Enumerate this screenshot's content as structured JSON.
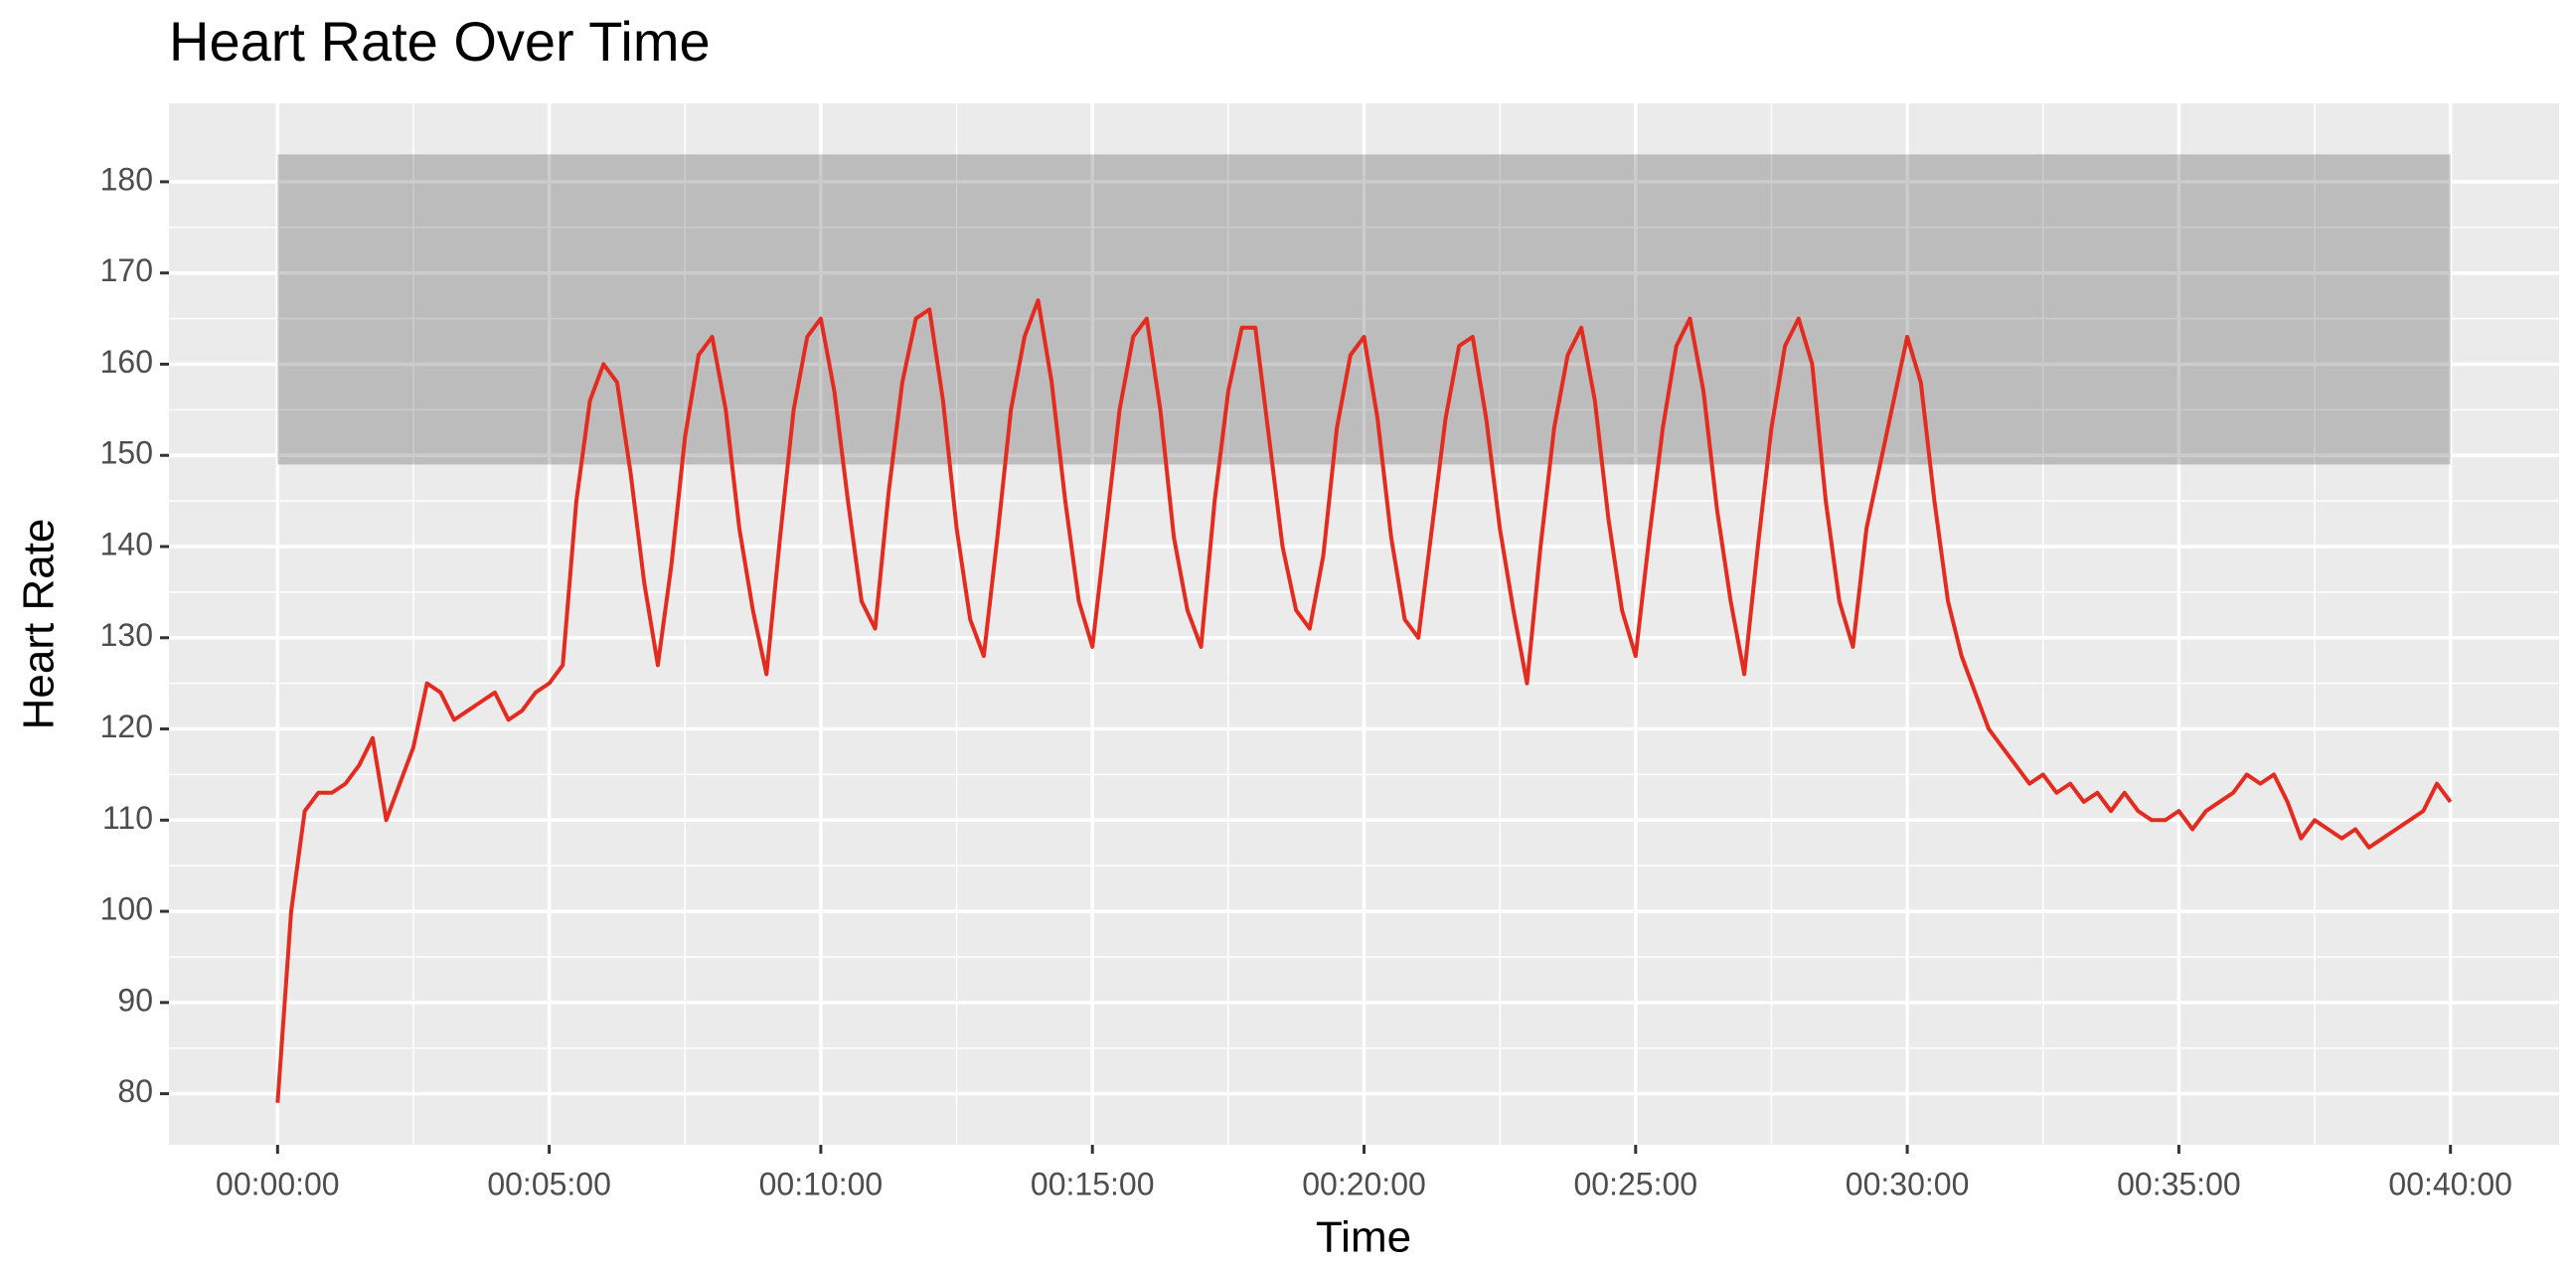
{
  "chart_data": {
    "type": "line",
    "title": "Heart Rate Over Time",
    "x_label": "Time",
    "y_label": "Heart Rate",
    "color": "#e32b20",
    "xlim": [
      -120,
      2520
    ],
    "ylim": [
      74.4,
      188.6
    ],
    "xticks": [
      {
        "value": 0,
        "label": "00:00:00"
      },
      {
        "value": 300,
        "label": "00:05:00"
      },
      {
        "value": 600,
        "label": "00:10:00"
      },
      {
        "value": 900,
        "label": "00:15:00"
      },
      {
        "value": 1200,
        "label": "00:20:00"
      },
      {
        "value": 1500,
        "label": "00:25:00"
      },
      {
        "value": 1800,
        "label": "00:30:00"
      },
      {
        "value": 2100,
        "label": "00:35:00"
      },
      {
        "value": 2400,
        "label": "00:40:00"
      }
    ],
    "yticks": [
      80,
      90,
      100,
      110,
      120,
      130,
      140,
      150,
      160,
      170,
      180
    ],
    "grid": true,
    "minor_grid": true,
    "zone": {
      "xmin": 0,
      "xmax": 2400,
      "ymin": 149,
      "ymax": 183,
      "color": "#000000",
      "opacity": 0.2
    },
    "x": [
      0,
      15,
      30,
      45,
      60,
      75,
      90,
      105,
      120,
      135,
      150,
      165,
      180,
      195,
      210,
      225,
      240,
      255,
      270,
      285,
      300,
      315,
      330,
      345,
      360,
      375,
      390,
      405,
      420,
      435,
      450,
      465,
      480,
      495,
      510,
      525,
      540,
      555,
      570,
      585,
      600,
      615,
      630,
      645,
      660,
      675,
      690,
      705,
      720,
      735,
      750,
      765,
      780,
      795,
      810,
      825,
      840,
      855,
      870,
      885,
      900,
      915,
      930,
      945,
      960,
      975,
      990,
      1005,
      1020,
      1035,
      1050,
      1065,
      1080,
      1095,
      1110,
      1125,
      1140,
      1155,
      1170,
      1185,
      1200,
      1215,
      1230,
      1245,
      1260,
      1275,
      1290,
      1305,
      1320,
      1335,
      1350,
      1365,
      1380,
      1395,
      1410,
      1425,
      1440,
      1455,
      1470,
      1485,
      1500,
      1515,
      1530,
      1545,
      1560,
      1575,
      1590,
      1605,
      1620,
      1635,
      1650,
      1665,
      1680,
      1695,
      1710,
      1725,
      1740,
      1755,
      1770,
      1785,
      1800,
      1815,
      1830,
      1845,
      1860,
      1875,
      1890,
      1905,
      1920,
      1935,
      1950,
      1965,
      1980,
      1995,
      2010,
      2025,
      2040,
      2055,
      2070,
      2085,
      2100,
      2115,
      2130,
      2145,
      2160,
      2175,
      2190,
      2205,
      2220,
      2235,
      2250,
      2265,
      2280,
      2295,
      2310,
      2325,
      2340,
      2355,
      2370,
      2385,
      2400
    ],
    "values": [
      79,
      100,
      111,
      113,
      113,
      114,
      116,
      119,
      110,
      114,
      118,
      125,
      124,
      121,
      122,
      123,
      124,
      121,
      122,
      124,
      125,
      127,
      145,
      156,
      160,
      158,
      148,
      136,
      127,
      138,
      152,
      161,
      163,
      155,
      142,
      133,
      126,
      141,
      155,
      163,
      165,
      157,
      145,
      134,
      131,
      146,
      158,
      165,
      166,
      156,
      142,
      132,
      128,
      141,
      155,
      163,
      167,
      158,
      145,
      134,
      129,
      142,
      155,
      163,
      165,
      155,
      141,
      133,
      129,
      145,
      157,
      164,
      164,
      152,
      140,
      133,
      131,
      139,
      153,
      161,
      163,
      154,
      141,
      132,
      130,
      142,
      154,
      162,
      163,
      154,
      142,
      133,
      125,
      140,
      153,
      161,
      164,
      156,
      143,
      133,
      128,
      141,
      153,
      162,
      165,
      157,
      144,
      134,
      126,
      140,
      153,
      162,
      165,
      160,
      145,
      134,
      129,
      142,
      149,
      156,
      163,
      158,
      145,
      134,
      128,
      124,
      120,
      118,
      116,
      114,
      115,
      113,
      114,
      112,
      113,
      111,
      113,
      111,
      110,
      110,
      111,
      109,
      111,
      112,
      113,
      115,
      114,
      115,
      112,
      108,
      110,
      109,
      108,
      109,
      107,
      108,
      109,
      110,
      111,
      114,
      112
    ]
  }
}
